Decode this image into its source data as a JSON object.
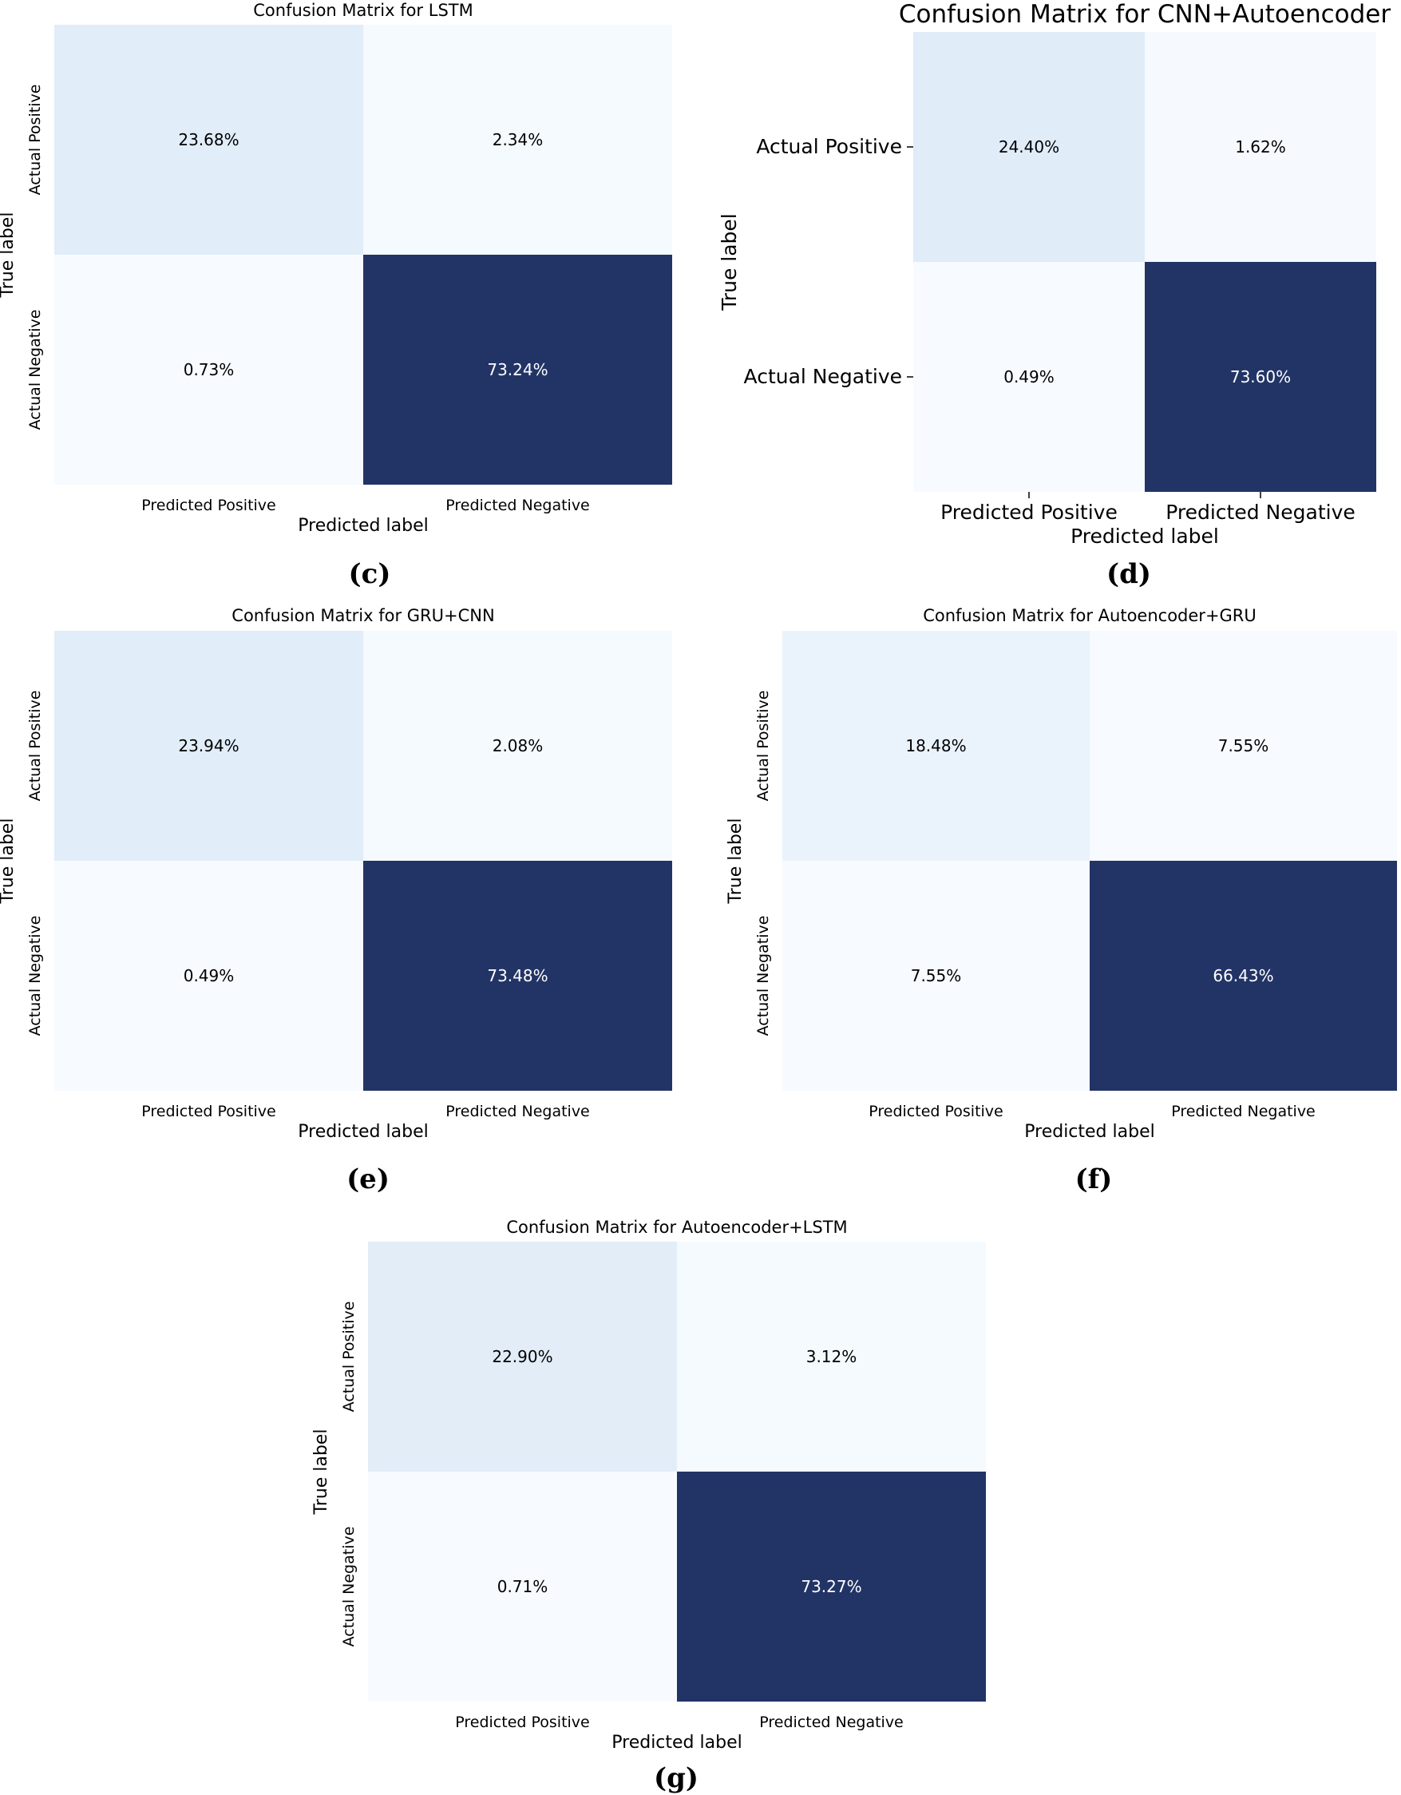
{
  "chart_data": [
    {
      "type": "heatmap",
      "panel": "(c)",
      "title": "Confusion Matrix for LSTM",
      "xlabel": "Predicted label",
      "ylabel": "True label",
      "x_categories": [
        "Predicted Positive",
        "Predicted Negative"
      ],
      "y_categories": [
        "Actual Positive",
        "Actual Negative"
      ],
      "values": [
        [
          23.68,
          2.34
        ],
        [
          0.73,
          73.24
        ]
      ],
      "labels": [
        [
          "23.68%",
          "2.34%"
        ],
        [
          "0.73%",
          "73.24%"
        ]
      ],
      "colormap": "Blues"
    },
    {
      "type": "heatmap",
      "panel": "(d)",
      "title": "Confusion Matrix for CNN+Autoencoder",
      "xlabel": "Predicted label",
      "ylabel": "True label",
      "x_categories": [
        "Predicted Positive",
        "Predicted Negative"
      ],
      "y_categories": [
        "Actual Positive",
        "Actual Negative"
      ],
      "values": [
        [
          24.4,
          1.62
        ],
        [
          0.49,
          73.6
        ]
      ],
      "labels": [
        [
          "24.40%",
          "1.62%"
        ],
        [
          "0.49%",
          "73.60%"
        ]
      ],
      "colormap": "Blues"
    },
    {
      "type": "heatmap",
      "panel": "(e)",
      "title": "Confusion Matrix for GRU+CNN",
      "xlabel": "Predicted label",
      "ylabel": "True label",
      "x_categories": [
        "Predicted Positive",
        "Predicted Negative"
      ],
      "y_categories": [
        "Actual Positive",
        "Actual Negative"
      ],
      "values": [
        [
          23.94,
          2.08
        ],
        [
          0.49,
          73.48
        ]
      ],
      "labels": [
        [
          "23.94%",
          "2.08%"
        ],
        [
          "0.49%",
          "73.48%"
        ]
      ],
      "colormap": "Blues"
    },
    {
      "type": "heatmap",
      "panel": "(f)",
      "title": "Confusion Matrix for Autoencoder+GRU",
      "xlabel": "Predicted label",
      "ylabel": "True label",
      "x_categories": [
        "Predicted Positive",
        "Predicted Negative"
      ],
      "y_categories": [
        "Actual Positive",
        "Actual Negative"
      ],
      "values": [
        [
          18.48,
          7.55
        ],
        [
          7.55,
          66.43
        ]
      ],
      "labels": [
        [
          "18.48%",
          "7.55%"
        ],
        [
          "7.55%",
          "66.43%"
        ]
      ],
      "colormap": "Blues"
    },
    {
      "type": "heatmap",
      "panel": "(g)",
      "title": "Confusion Matrix for Autoencoder+LSTM",
      "xlabel": "Predicted label",
      "ylabel": "True label",
      "x_categories": [
        "Predicted Positive",
        "Predicted Negative"
      ],
      "y_categories": [
        "Actual Positive",
        "Actual Negative"
      ],
      "values": [
        [
          22.9,
          3.12
        ],
        [
          0.71,
          73.27
        ]
      ],
      "labels": [
        [
          "22.90%",
          "3.12%"
        ],
        [
          "0.71%",
          "73.27%"
        ]
      ],
      "colormap": "Blues"
    }
  ]
}
